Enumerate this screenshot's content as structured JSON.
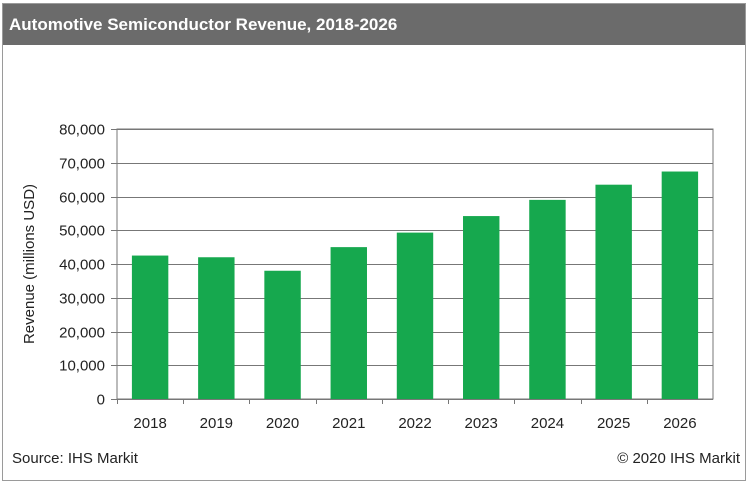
{
  "title": "Automotive Semiconductor Revenue, 2018-2026",
  "footer": {
    "source": "Source: IHS Markit",
    "copyright": "© 2020 IHS Markit"
  },
  "colors": {
    "bar": "#16a84e",
    "title_bg": "#6b6b6b",
    "gridline": "#777777"
  },
  "chart_data": {
    "type": "bar",
    "categories": [
      "2018",
      "2019",
      "2020",
      "2021",
      "2022",
      "2023",
      "2024",
      "2025",
      "2026"
    ],
    "values": [
      42500,
      42000,
      38000,
      45000,
      49300,
      54200,
      59000,
      63500,
      67400
    ],
    "ylabel": "Revenue (millions USD)",
    "xlabel": "",
    "ylim": [
      0,
      80000
    ],
    "yticks": [
      "0",
      "10,000",
      "20,000",
      "30,000",
      "40,000",
      "50,000",
      "60,000",
      "70,000",
      "80,000"
    ],
    "grid": true,
    "legend": "none"
  }
}
